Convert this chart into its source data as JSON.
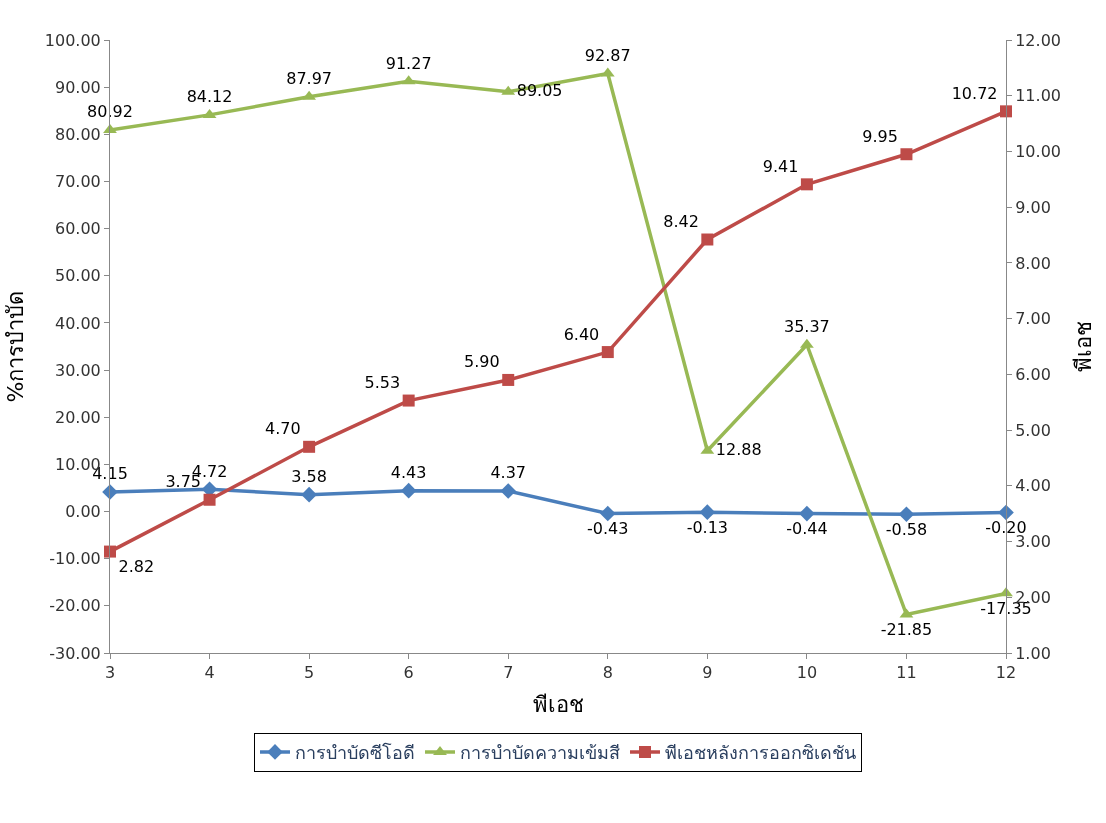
{
  "chart_data": {
    "type": "line",
    "xlabel": "พีเอช",
    "ylabel": "%การบำบัด",
    "y2label": "พีเอช",
    "categories": [
      "3",
      "4",
      "5",
      "6",
      "7",
      "8",
      "9",
      "10",
      "11",
      "12"
    ],
    "series": [
      {
        "name": "การบำบัดซีโอดี",
        "color": "#4a7ebb",
        "marker": "diamond",
        "values": [
          4.15,
          4.72,
          3.58,
          4.43,
          4.37,
          -0.43,
          -0.13,
          -0.44,
          -0.58,
          -0.2
        ],
        "value_labels": [
          "4.15",
          "4.72",
          "3.58",
          "4.43",
          "4.37",
          "-0.43",
          "-0.13",
          "-0.44",
          "-0.58",
          "-0.20"
        ]
      },
      {
        "name": "การบำบัดความเข้มสี",
        "color": "#98b954",
        "marker": "triangle",
        "values": [
          80.92,
          84.12,
          87.97,
          91.27,
          89.05,
          92.87,
          12.88,
          35.37,
          -21.85,
          -17.35
        ],
        "value_labels": [
          "80.92",
          "84.12",
          "87.97",
          "91.27",
          "89.05",
          "92.87",
          "12.88",
          "35.37",
          "-21.85",
          "-17.35"
        ]
      },
      {
        "name": "พีเอชหลังการออกซิเดชัน",
        "color": "#be4b48",
        "marker": "square",
        "axis": "y2",
        "values": [
          2.82,
          3.75,
          4.7,
          5.53,
          5.9,
          6.4,
          8.42,
          9.41,
          9.95,
          10.72
        ],
        "value_labels": [
          "2.82",
          "3.75",
          "4.70",
          "5.53",
          "5.90",
          "6.40",
          "8.42",
          "9.41",
          "9.95",
          "10.72"
        ]
      }
    ],
    "ylim": [
      -30,
      100
    ],
    "yticks": [
      {
        "value": -30,
        "label": "-30.00"
      },
      {
        "value": -20,
        "label": "-20.00"
      },
      {
        "value": -10,
        "label": "-10.00"
      },
      {
        "value": 0,
        "label": "0.00"
      },
      {
        "value": 10,
        "label": "10.00"
      },
      {
        "value": 20,
        "label": "20.00"
      },
      {
        "value": 30,
        "label": "30.00"
      },
      {
        "value": 40,
        "label": "40.00"
      },
      {
        "value": 50,
        "label": "50.00"
      },
      {
        "value": 60,
        "label": "60.00"
      },
      {
        "value": 70,
        "label": "70.00"
      },
      {
        "value": 80,
        "label": "80.00"
      },
      {
        "value": 90,
        "label": "90.00"
      },
      {
        "value": 100,
        "label": "100.00"
      }
    ],
    "y2lim": [
      1,
      12
    ],
    "y2ticks": [
      {
        "value": 1,
        "label": "1.00"
      },
      {
        "value": 2,
        "label": "2.00"
      },
      {
        "value": 3,
        "label": "3.00"
      },
      {
        "value": 4,
        "label": "4.00"
      },
      {
        "value": 5,
        "label": "5.00"
      },
      {
        "value": 6,
        "label": "6.00"
      },
      {
        "value": 7,
        "label": "7.00"
      },
      {
        "value": 8,
        "label": "8.00"
      },
      {
        "value": 9,
        "label": "9.00"
      },
      {
        "value": 10,
        "label": "10.00"
      },
      {
        "value": 11,
        "label": "11.00"
      },
      {
        "value": 12,
        "label": "12.00"
      }
    ],
    "legend": "bottom",
    "line_style": "solid"
  }
}
